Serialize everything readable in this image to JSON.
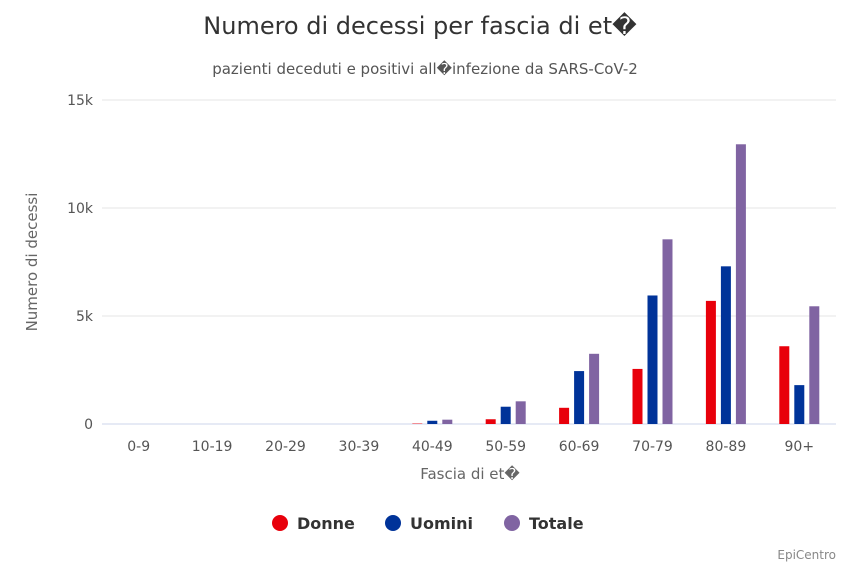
{
  "chart_data": {
    "type": "bar",
    "title": "Numero di decessi per fascia di et�",
    "subtitle": "pazienti deceduti e positivi all�infezione da SARS-CoV-2",
    "xlabel": "Fascia di et�",
    "ylabel": "Numero di decessi",
    "categories": [
      "0-9",
      "10-19",
      "20-29",
      "30-39",
      "40-49",
      "50-59",
      "60-69",
      "70-79",
      "80-89",
      "90+"
    ],
    "ylim": [
      0,
      15000
    ],
    "yticks": [
      {
        "value": 0,
        "label": "0"
      },
      {
        "value": 5000,
        "label": "5k"
      },
      {
        "value": 10000,
        "label": "10k"
      },
      {
        "value": 15000,
        "label": "15k"
      }
    ],
    "grid": true,
    "legend_position": "bottom-center",
    "series": [
      {
        "name": "Donne",
        "color": "#e8000b",
        "values": [
          0,
          0,
          0,
          0,
          20,
          220,
          750,
          2550,
          5700,
          3600
        ]
      },
      {
        "name": "Uomini",
        "color": "#003399",
        "values": [
          0,
          0,
          0,
          0,
          150,
          800,
          2450,
          5950,
          7300,
          1800
        ]
      },
      {
        "name": "Totale",
        "color": "#8064a2",
        "values": [
          0,
          0,
          0,
          0,
          200,
          1050,
          3250,
          8550,
          12950,
          5450
        ]
      }
    ],
    "credit": "EpiCentro"
  }
}
